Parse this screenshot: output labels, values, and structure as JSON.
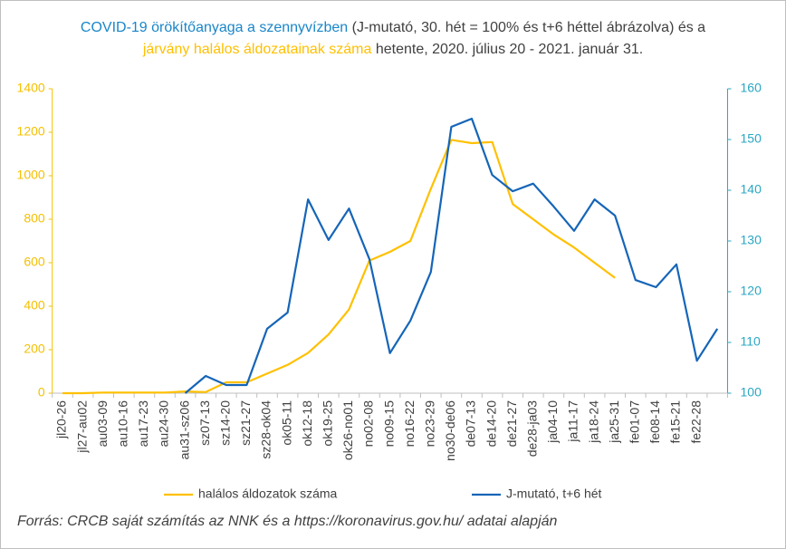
{
  "chart_data": {
    "type": "line",
    "title_parts": [
      {
        "text": "COVID-19 örökítőanyaga a szennyvízben",
        "color": "#1a86c8"
      },
      {
        "text": " (J-mutató, 30. hét = 100% és t+6 héttel ábrázolva) és a ",
        "color": "#404040"
      },
      {
        "text": "járvány halálos áldozatainak száma",
        "color": "#ffc000"
      },
      {
        "text": " hetente, 2020. július 20 - 2021. január 31.",
        "color": "#404040"
      }
    ],
    "source": "Forrás: CRCB saját számítás az NNK és a https://koronavirus.gov.hu/ adatai alapján",
    "categories": [
      "jl20-26",
      "jl27-au02",
      "au03-09",
      "au10-16",
      "au17-23",
      "au24-30",
      "au31-sz06",
      "sz07-13",
      "sz14-20",
      "sz21-27",
      "sz28-ok04",
      "ok05-11",
      "ok12-18",
      "ok19-25",
      "ok26-no01",
      "no02-08",
      "no09-15",
      "no16-22",
      "no23-29",
      "no30-de06",
      "de07-13",
      "de14-20",
      "de21-27",
      "de28-ja03",
      "ja04-10",
      "ja11-17",
      "ja18-24",
      "ja25-31",
      "fe01-07",
      "fe08-14",
      "fe15-21",
      "fe22-28",
      null
    ],
    "series": [
      {
        "name": "halálos áldozatok száma",
        "color": "#ffc000",
        "values": [
          0,
          0,
          3,
          3,
          3,
          3,
          8,
          5,
          50,
          50,
          90,
          130,
          185,
          270,
          385,
          610,
          650,
          700,
          940,
          1165,
          1150,
          1155,
          870,
          800,
          730,
          670,
          600,
          530,
          null,
          null,
          null,
          null,
          null
        ]
      },
      {
        "name": "J-mutató, t+6 hét",
        "color": "#1565b8",
        "axis": "y2",
        "values": [
          null,
          null,
          null,
          null,
          null,
          null,
          100,
          103.4,
          101.6,
          101.6,
          112.7,
          115.9,
          138.2,
          130.2,
          136.4,
          126.4,
          107.9,
          114.3,
          123.9,
          152.5,
          154.1,
          143,
          139.8,
          141.3,
          136.8,
          132,
          138.2,
          135,
          122.3,
          120.9,
          125.4,
          106.4,
          112.7
        ]
      }
    ],
    "ylim": [
      0,
      1400
    ],
    "yticks": [
      0,
      200,
      400,
      600,
      800,
      1000,
      1200,
      1400
    ],
    "ytick_color": "#f5c000",
    "y2lim": [
      100,
      160
    ],
    "y2ticks": [
      100,
      110,
      120,
      130,
      140,
      150,
      160
    ],
    "y2tick_color": "#2aa7c4",
    "grid": false,
    "legend": "bottom"
  }
}
